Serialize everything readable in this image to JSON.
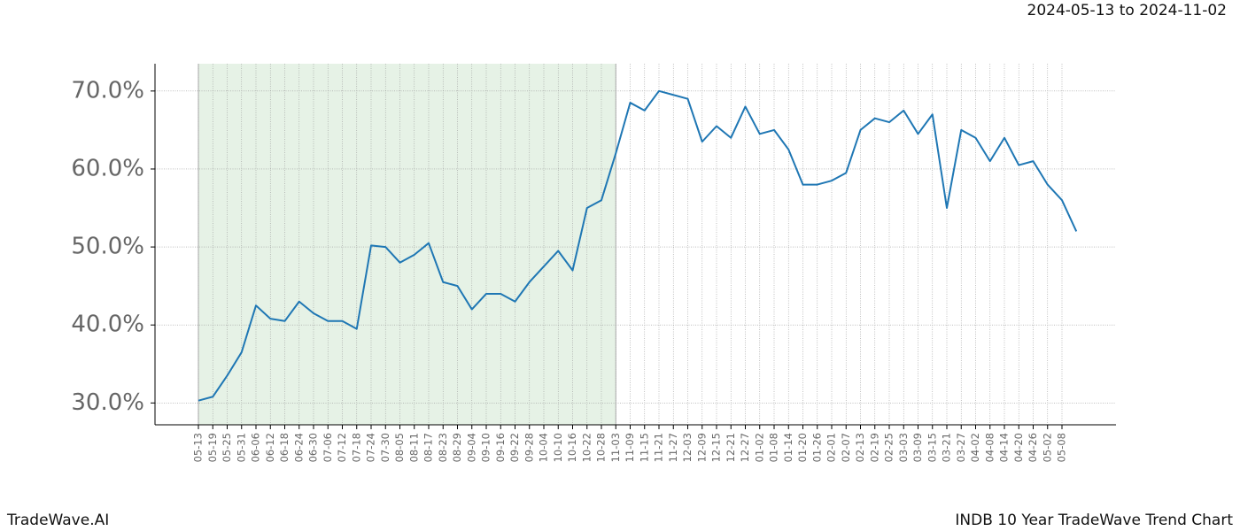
{
  "chart_data": {
    "type": "line",
    "title": "2024-05-13 to 2024-11-02",
    "footer_left": "TradeWave.AI",
    "footer_right": "INDB 10 Year TradeWave Trend Chart",
    "categories": [
      "05-13",
      "05-19",
      "05-25",
      "05-31",
      "06-06",
      "06-12",
      "06-18",
      "06-24",
      "06-30",
      "07-06",
      "07-12",
      "07-18",
      "07-24",
      "07-30",
      "08-05",
      "08-11",
      "08-17",
      "08-23",
      "08-29",
      "09-04",
      "09-10",
      "09-16",
      "09-22",
      "09-28",
      "10-04",
      "10-10",
      "10-16",
      "10-22",
      "10-28",
      "11-03",
      "11-09",
      "11-15",
      "11-21",
      "11-27",
      "12-03",
      "12-09",
      "12-15",
      "12-21",
      "12-27",
      "01-02",
      "01-08",
      "01-14",
      "01-20",
      "01-26",
      "02-01",
      "02-07",
      "02-13",
      "02-19",
      "02-25",
      "03-03",
      "03-09",
      "03-15",
      "03-21",
      "03-27",
      "04-02",
      "04-08",
      "04-14",
      "04-20",
      "04-26",
      "05-02",
      "05-08",
      null
    ],
    "series": [
      {
        "color": "#1f77b4",
        "values": [
          30.3,
          30.8,
          33.5,
          36.5,
          42.5,
          40.8,
          40.5,
          43.0,
          41.5,
          40.5,
          40.5,
          39.5,
          50.2,
          50.0,
          48.0,
          49.0,
          50.5,
          45.5,
          45.0,
          42.0,
          44.0,
          44.0,
          43.0,
          45.5,
          47.5,
          49.5,
          47.0,
          55.0,
          56.0,
          62.0,
          68.5,
          67.5,
          70.0,
          69.5,
          69.0,
          63.5,
          65.5,
          64.0,
          68.0,
          64.5,
          65.0,
          62.5,
          58.0,
          58.0,
          58.5,
          59.5,
          65.0,
          66.5,
          66.0,
          67.5,
          64.5,
          67.0,
          55.0,
          65.0,
          64.0,
          61.0,
          64.0,
          60.5,
          61.0,
          58.0,
          56.0,
          52.0
        ]
      }
    ],
    "ylim": [
      27.2,
      73.5
    ],
    "yticks": [
      {
        "value": 30,
        "label": "30.0%"
      },
      {
        "value": 40,
        "label": "40.0%"
      },
      {
        "value": 50,
        "label": "50.0%"
      },
      {
        "value": 60,
        "label": "60.0%"
      },
      {
        "value": 70,
        "label": "70.0%"
      }
    ],
    "grid": true,
    "shaded_region": {
      "start": "05-13",
      "end": "11-03",
      "color": "#e6f2e6"
    }
  }
}
